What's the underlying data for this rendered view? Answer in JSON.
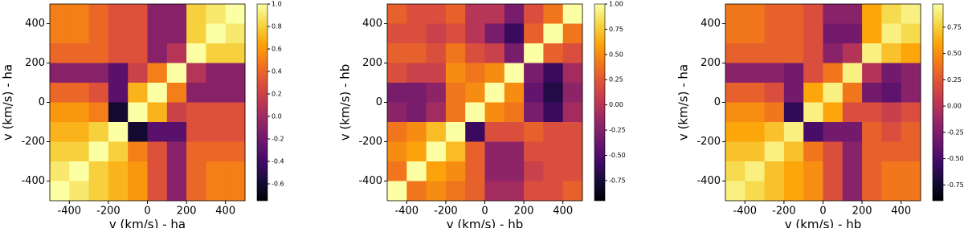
{
  "chart_data": [
    {
      "type": "heatmap",
      "colormap": "inferno",
      "xlabel": "v (km/s) - ha",
      "ylabel": "v (km/s) - ha",
      "x": [
        -450,
        -350,
        -250,
        -150,
        -50,
        50,
        150,
        250,
        350,
        450
      ],
      "y": [
        450,
        350,
        250,
        150,
        50,
        -50,
        -150,
        -250,
        -350,
        -450
      ],
      "z": [
        [
          0.5,
          0.5,
          0.4,
          0.3,
          0.3,
          -0.1,
          -0.1,
          0.8,
          0.9,
          1.0
        ],
        [
          0.5,
          0.5,
          0.4,
          0.3,
          0.3,
          -0.1,
          -0.1,
          0.8,
          1.0,
          0.9
        ],
        [
          0.4,
          0.4,
          0.4,
          0.3,
          0.3,
          -0.1,
          0.1,
          1.0,
          0.8,
          0.8
        ],
        [
          -0.1,
          -0.1,
          -0.1,
          -0.3,
          0.2,
          0.5,
          1.0,
          0.1,
          -0.1,
          -0.1
        ],
        [
          0.4,
          0.4,
          0.3,
          -0.3,
          0.7,
          1.0,
          0.5,
          -0.1,
          -0.1,
          -0.1
        ],
        [
          0.6,
          0.6,
          0.5,
          -0.6,
          1.0,
          0.7,
          0.2,
          0.3,
          0.3,
          0.3
        ],
        [
          0.7,
          0.7,
          0.8,
          1.0,
          -0.6,
          -0.3,
          -0.3,
          0.3,
          0.3,
          0.3
        ],
        [
          0.8,
          0.8,
          1.0,
          0.8,
          0.5,
          0.3,
          -0.1,
          0.4,
          0.4,
          0.4
        ],
        [
          0.9,
          1.0,
          0.8,
          0.7,
          0.6,
          0.3,
          -0.1,
          0.4,
          0.5,
          0.5
        ],
        [
          1.0,
          0.9,
          0.8,
          0.7,
          0.6,
          0.3,
          -0.1,
          0.4,
          0.5,
          0.5
        ]
      ],
      "xlim": [
        -500,
        500
      ],
      "ylim": [
        -500,
        500
      ],
      "xticks": [
        -400,
        -200,
        0,
        200,
        400
      ],
      "yticks": [
        -400,
        -200,
        0,
        200,
        400
      ],
      "clim": [
        -0.75,
        1.0
      ],
      "cticks": [
        {
          "value": 1,
          "label": "1.0"
        },
        0.8,
        0.6,
        0.4,
        0.2,
        {
          "value": 0,
          "label": "0.0"
        },
        -0.2,
        -0.4,
        -0.6
      ]
    },
    {
      "type": "heatmap",
      "colormap": "inferno",
      "xlabel": "v (km/s) - hb",
      "ylabel": "v (km/s) - hb",
      "x": [
        -450,
        -350,
        -250,
        -150,
        -50,
        50,
        150,
        250,
        350,
        450
      ],
      "y": [
        450,
        350,
        250,
        150,
        50,
        -50,
        -150,
        -250,
        -350,
        -450
      ],
      "z": [
        [
          0.3,
          0.2,
          0.2,
          0.3,
          0.0,
          0.0,
          -0.3,
          0.2,
          0.4,
          1.0
        ],
        [
          0.2,
          0.2,
          0.1,
          0.2,
          0.0,
          -0.3,
          -0.6,
          0.3,
          1.0,
          0.4
        ],
        [
          0.3,
          0.3,
          0.2,
          0.4,
          0.2,
          0.1,
          -0.3,
          1.0,
          0.3,
          0.2
        ],
        [
          0.2,
          0.1,
          0.1,
          0.5,
          0.4,
          0.5,
          1.0,
          -0.3,
          -0.6,
          -0.1
        ],
        [
          -0.3,
          -0.3,
          -0.2,
          0.4,
          0.5,
          1.0,
          0.5,
          -0.4,
          -0.7,
          -0.2
        ],
        [
          -0.2,
          -0.3,
          -0.1,
          0.4,
          1.0,
          0.5,
          0.4,
          -0.3,
          -0.6,
          -0.1
        ],
        [
          0.4,
          0.5,
          0.7,
          1.0,
          -0.6,
          0.2,
          0.2,
          0.3,
          0.2,
          0.2
        ],
        [
          0.5,
          0.6,
          1.0,
          0.7,
          0.3,
          -0.2,
          -0.2,
          0.2,
          0.2,
          0.2
        ],
        [
          0.4,
          1.0,
          0.6,
          0.5,
          0.3,
          -0.2,
          -0.2,
          0.1,
          0.2,
          0.2
        ],
        [
          1.0,
          0.4,
          0.5,
          0.4,
          0.3,
          -0.1,
          -0.1,
          0.2,
          0.2,
          0.3
        ]
      ],
      "xlim": [
        -500,
        500
      ],
      "ylim": [
        -500,
        500
      ],
      "xticks": [
        -400,
        -200,
        0,
        200,
        400
      ],
      "yticks": [
        -400,
        -200,
        0,
        200,
        400
      ],
      "clim": [
        -0.95,
        1.0
      ],
      "cticks": [
        {
          "value": 1,
          "label": "1.00"
        },
        0.75,
        {
          "value": 0.5,
          "label": "0.50"
        },
        0.25,
        {
          "value": 0,
          "label": "0.00"
        },
        -0.25,
        {
          "value": -0.5,
          "label": "-0.50"
        },
        -0.75
      ]
    },
    {
      "type": "heatmap",
      "colormap": "inferno",
      "xlabel": "v (km/s) - hb",
      "ylabel": "v (km/s) - ha",
      "x": [
        -450,
        -350,
        -250,
        -150,
        -50,
        50,
        150,
        250,
        350,
        450
      ],
      "y": [
        450,
        350,
        250,
        150,
        50,
        -50,
        -150,
        -250,
        -350,
        -450
      ],
      "z": [
        [
          0.4,
          0.4,
          0.3,
          0.3,
          0.2,
          -0.2,
          -0.2,
          0.6,
          0.8,
          0.9
        ],
        [
          0.4,
          0.4,
          0.3,
          0.3,
          0.2,
          -0.3,
          -0.3,
          0.6,
          0.9,
          0.8
        ],
        [
          0.3,
          0.3,
          0.3,
          0.3,
          0.2,
          -0.2,
          0.0,
          0.9,
          0.7,
          0.6
        ],
        [
          -0.2,
          -0.2,
          -0.2,
          -0.3,
          0.2,
          0.4,
          0.9,
          0.0,
          -0.3,
          -0.2
        ],
        [
          0.3,
          0.3,
          0.2,
          -0.3,
          0.6,
          0.9,
          0.4,
          -0.3,
          -0.4,
          -0.2
        ],
        [
          0.5,
          0.5,
          0.4,
          -0.6,
          0.9,
          0.6,
          0.2,
          0.2,
          0.1,
          0.2
        ],
        [
          0.6,
          0.6,
          0.7,
          0.9,
          -0.5,
          -0.3,
          -0.3,
          0.3,
          0.2,
          0.3
        ],
        [
          0.7,
          0.7,
          0.9,
          0.7,
          0.4,
          0.2,
          -0.2,
          0.3,
          0.3,
          0.3
        ],
        [
          0.8,
          0.9,
          0.7,
          0.6,
          0.5,
          0.2,
          -0.2,
          0.3,
          0.4,
          0.4
        ],
        [
          0.9,
          0.8,
          0.7,
          0.6,
          0.5,
          0.2,
          -0.2,
          0.3,
          0.4,
          0.4
        ]
      ],
      "xlim": [
        -500,
        500
      ],
      "ylim": [
        -500,
        500
      ],
      "xticks": [
        -400,
        -200,
        0,
        200,
        400
      ],
      "yticks": [
        -400,
        -200,
        0,
        200,
        400
      ],
      "clim": [
        -0.9,
        0.97
      ],
      "cticks": [
        0.75,
        {
          "value": 0.5,
          "label": "0.50"
        },
        0.25,
        {
          "value": 0,
          "label": "0.00"
        },
        -0.25,
        {
          "value": -0.5,
          "label": "-0.50"
        },
        -0.75
      ]
    }
  ]
}
